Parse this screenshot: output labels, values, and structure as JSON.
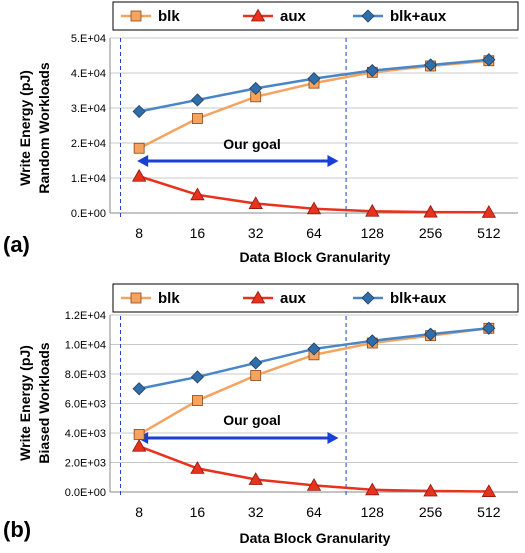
{
  "chart_data": [
    {
      "type": "line",
      "panel_label": "(a)",
      "xlabel": "Data Block Granularity",
      "ylabel_lines": [
        "Write Energy (pJ)",
        "Random Workloads"
      ],
      "categories": [
        "8",
        "16",
        "32",
        "64",
        "128",
        "256",
        "512"
      ],
      "ylim": [
        0,
        50000
      ],
      "yticks": [
        0,
        10000,
        20000,
        30000,
        40000,
        50000
      ],
      "ytick_labels": [
        "0.E+00",
        "1.E+04",
        "2.E+04",
        "3.E+04",
        "4.E+04",
        "5.E+04"
      ],
      "grid": "horizontal",
      "legend_position": "top",
      "series": [
        {
          "name": "blk",
          "marker": "square",
          "color": "#F4A460",
          "values": [
            18500,
            27000,
            33200,
            37100,
            40200,
            42000,
            43500
          ]
        },
        {
          "name": "aux",
          "marker": "triangle",
          "color": "#E8321E",
          "values": [
            10500,
            5200,
            2700,
            1200,
            500,
            250,
            200
          ]
        },
        {
          "name": "blk+aux",
          "marker": "diamond",
          "color": "#4A86C5",
          "values": [
            29000,
            32300,
            35600,
            38400,
            40700,
            42300,
            43800
          ]
        }
      ],
      "annotation": {
        "text": "Our goal",
        "from_category": "8",
        "to_category": "64"
      }
    },
    {
      "type": "line",
      "panel_label": "(b)",
      "xlabel": "Data Block Granularity",
      "ylabel_lines": [
        "Write Energy (pJ)",
        "Biased Workloads"
      ],
      "categories": [
        "8",
        "16",
        "32",
        "64",
        "128",
        "256",
        "512"
      ],
      "ylim": [
        0,
        12000
      ],
      "yticks": [
        0,
        2000,
        4000,
        6000,
        8000,
        10000,
        12000
      ],
      "ytick_labels": [
        "0.0E+00",
        "2.0E+03",
        "4.0E+03",
        "6.0E+03",
        "8.0E+03",
        "1.0E+04",
        "1.2E+04"
      ],
      "grid": "horizontal",
      "legend_position": "top",
      "series": [
        {
          "name": "blk",
          "marker": "square",
          "color": "#F4A460",
          "values": [
            3900,
            6200,
            7900,
            9300,
            10100,
            10600,
            11100
          ]
        },
        {
          "name": "aux",
          "marker": "triangle",
          "color": "#E8321E",
          "values": [
            3100,
            1600,
            850,
            450,
            150,
            70,
            30
          ]
        },
        {
          "name": "blk+aux",
          "marker": "diamond",
          "color": "#4A86C5",
          "values": [
            7000,
            7800,
            8750,
            9700,
            10250,
            10700,
            11100
          ]
        }
      ],
      "annotation": {
        "text": "Our goal",
        "from_category": "8",
        "to_category": "64"
      }
    }
  ]
}
